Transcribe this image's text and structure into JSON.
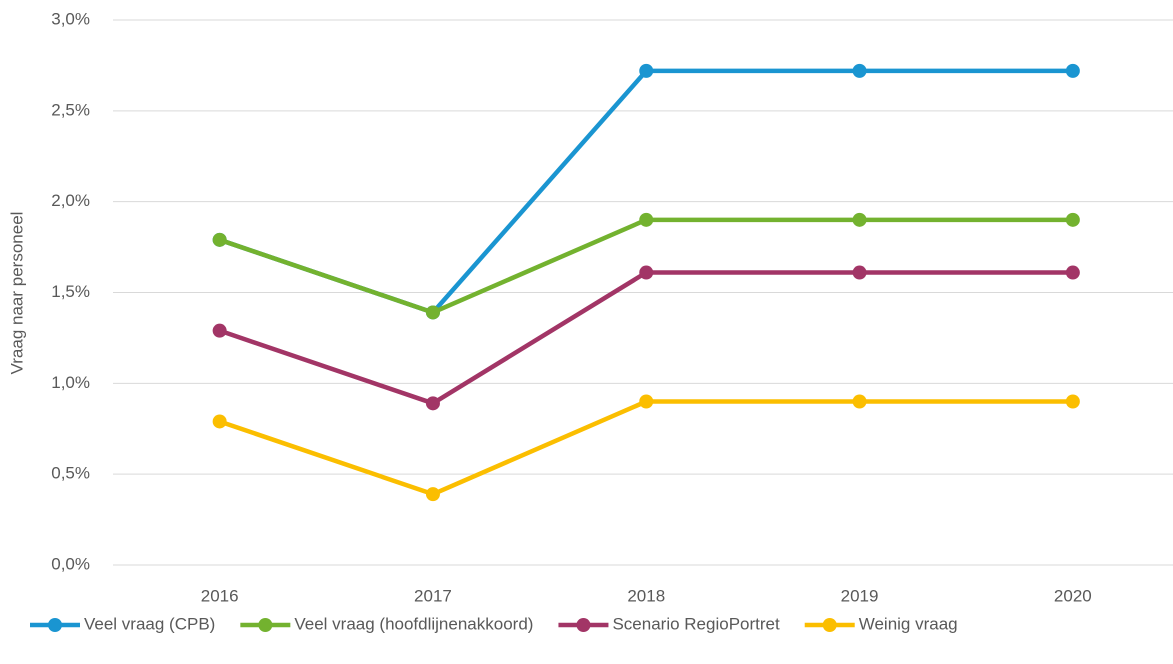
{
  "chart_data": {
    "type": "line",
    "y_label": "Vraag naar personeel",
    "categories": [
      "2016",
      "2017",
      "2018",
      "2019",
      "2020"
    ],
    "series": [
      {
        "name": "Veel vraag (CPB)",
        "color": "#1a95d1",
        "values": [
          1.79,
          1.39,
          2.72,
          2.72,
          2.72
        ]
      },
      {
        "name": "Veel vraag (hoofdlijnenakkoord)",
        "color": "#73b22f",
        "values": [
          1.79,
          1.39,
          1.9,
          1.9,
          1.9
        ]
      },
      {
        "name": "Scenario RegioPortret",
        "color": "#a23566",
        "values": [
          1.29,
          0.89,
          1.61,
          1.61,
          1.61
        ]
      },
      {
        "name": "Weinig vraag",
        "color": "#fbbe00",
        "values": [
          0.79,
          0.39,
          0.9,
          0.9,
          0.9
        ]
      }
    ],
    "ylim": [
      0,
      3
    ],
    "yticks": [
      {
        "value": 0,
        "label": "0,0%"
      },
      {
        "value": 0.5,
        "label": "0,5%"
      },
      {
        "value": 1,
        "label": "1,0%"
      },
      {
        "value": 1.5,
        "label": "1,5%"
      },
      {
        "value": 2,
        "label": "2,0%"
      },
      {
        "value": 2.5,
        "label": "2,5%"
      },
      {
        "value": 3,
        "label": "3,0%"
      }
    ],
    "grid": true,
    "legend": "bottom"
  }
}
